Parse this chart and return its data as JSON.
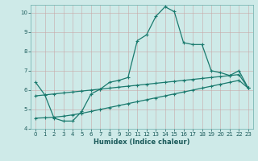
{
  "xlabel": "Humidex (Indice chaleur)",
  "xlim": [
    -0.5,
    23.5
  ],
  "ylim": [
    4,
    10.4
  ],
  "xticks": [
    0,
    1,
    2,
    3,
    4,
    5,
    6,
    7,
    8,
    9,
    10,
    11,
    12,
    13,
    14,
    15,
    16,
    17,
    18,
    19,
    20,
    21,
    22,
    23
  ],
  "yticks": [
    4,
    5,
    6,
    7,
    8,
    9,
    10
  ],
  "bg_color": "#ceeae8",
  "grid_color": "#b8d8d6",
  "line_color": "#1a7a6e",
  "line1_x": [
    0,
    1,
    2,
    3,
    4,
    5,
    6,
    7,
    8,
    9,
    10,
    11,
    12,
    13,
    14,
    15,
    16,
    17,
    18,
    19,
    20,
    21,
    22,
    23
  ],
  "line1_y": [
    6.4,
    5.75,
    4.55,
    4.4,
    4.4,
    4.9,
    5.8,
    6.05,
    6.4,
    6.5,
    6.65,
    8.55,
    8.85,
    9.8,
    10.3,
    10.05,
    8.45,
    8.35,
    8.35,
    7.0,
    6.9,
    6.75,
    7.0,
    6.1
  ],
  "line2_x": [
    0,
    1,
    2,
    3,
    4,
    5,
    6,
    7,
    8,
    9,
    10,
    11,
    12,
    13,
    14,
    15,
    16,
    17,
    18,
    19,
    20,
    21,
    22,
    23
  ],
  "line2_y": [
    5.7,
    5.75,
    5.8,
    5.85,
    5.9,
    5.95,
    6.0,
    6.05,
    6.1,
    6.15,
    6.2,
    6.25,
    6.3,
    6.35,
    6.4,
    6.45,
    6.5,
    6.55,
    6.6,
    6.65,
    6.7,
    6.75,
    6.8,
    6.1
  ],
  "line3_x": [
    0,
    1,
    2,
    3,
    4,
    5,
    6,
    7,
    8,
    9,
    10,
    11,
    12,
    13,
    14,
    15,
    16,
    17,
    18,
    19,
    20,
    21,
    22,
    23
  ],
  "line3_y": [
    4.55,
    4.57,
    4.6,
    4.65,
    4.72,
    4.8,
    4.9,
    5.0,
    5.1,
    5.2,
    5.3,
    5.4,
    5.5,
    5.6,
    5.7,
    5.8,
    5.9,
    6.0,
    6.1,
    6.2,
    6.3,
    6.4,
    6.5,
    6.1
  ]
}
